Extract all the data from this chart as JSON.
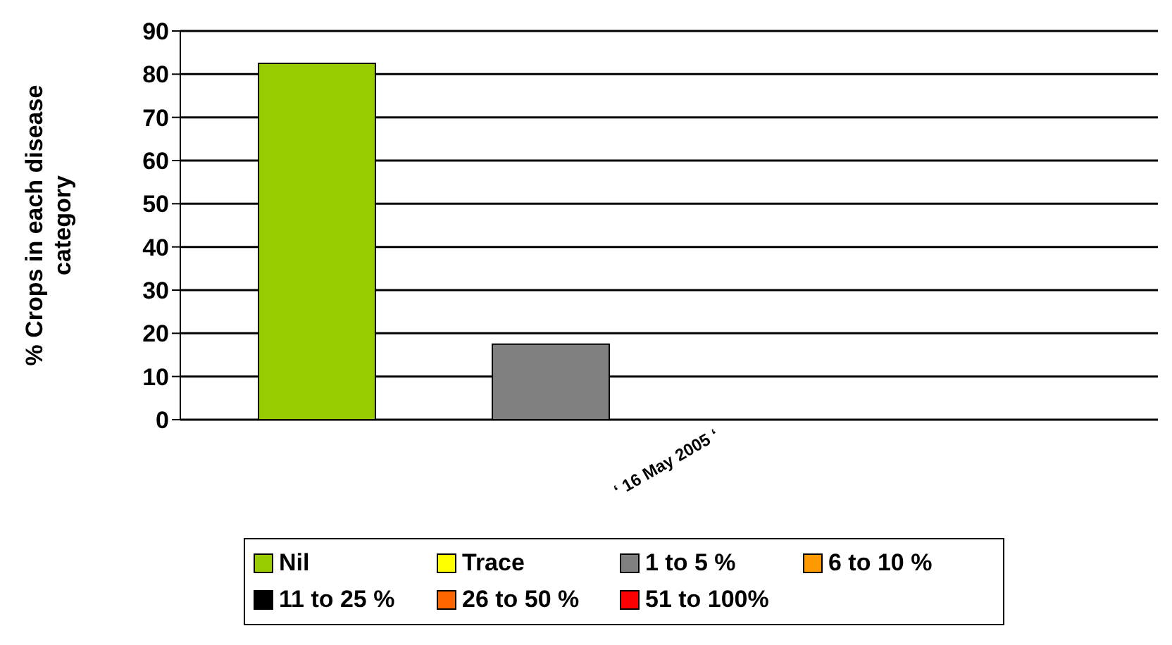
{
  "chart_data": {
    "type": "bar",
    "ylabel": "% Crops in each disease category",
    "categories": [
      "‘ 16 May 2005 ‘"
    ],
    "series": [
      {
        "name": "Nil",
        "color": "#99cc00",
        "values": [
          82.5
        ]
      },
      {
        "name": "Trace",
        "color": "#ffff00",
        "values": [
          0
        ]
      },
      {
        "name": "1 to 5 %",
        "color": "#808080",
        "values": [
          17.5
        ]
      },
      {
        "name": "6 to 10 %",
        "color": "#ff9900",
        "values": [
          0
        ]
      },
      {
        "name": "11 to 25 %",
        "color": "#000000",
        "values": [
          0
        ]
      },
      {
        "name": "26 to 50 %",
        "color": "#ff6600",
        "values": [
          0
        ]
      },
      {
        "name": "51 to 100%",
        "color": "#ff0000",
        "values": [
          0
        ]
      }
    ],
    "ylim": [
      0,
      90
    ],
    "yticks": [
      0,
      10,
      20,
      30,
      40,
      50,
      60,
      70,
      80,
      90
    ],
    "grid": "y",
    "legend": "bottom"
  }
}
